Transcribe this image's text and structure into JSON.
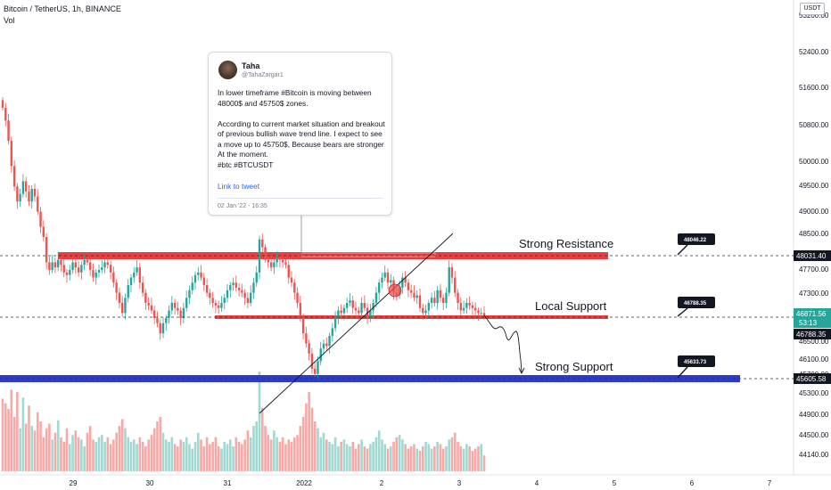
{
  "header": {
    "title": "Bitcoin / TetherUS, 1h, BINANCE",
    "vol_label": "Vol",
    "currency": "USDT"
  },
  "tweet": {
    "name": "Taha",
    "handle": "@TahaZargar1",
    "body": "In lower timeframe #Bitcoin is moving between 48000$ and 45750$ zones.\n\nAccording to current market situation and breakout of previous bullish wave trend line. I expect to see a move up to 45750$, Because bears are stronger At the moment.\n#btc #BTCUSDT",
    "link": "Link to tweet",
    "date": "02 Jan '22 - 16:35"
  },
  "annotations": {
    "strong_resistance": "Strong Resistance",
    "local_support": "Local Support",
    "strong_support": "Strong Support",
    "badge_resistance": "48046.22",
    "badge_local": "46788.35",
    "badge_support": "45633.73"
  },
  "price_tags": {
    "resistance": "48031.40",
    "current": "46871.56",
    "countdown": "53:13",
    "local": "46788.35",
    "support": "45605.58"
  },
  "colors": {
    "up": "#26a69a",
    "down": "#ef5350",
    "vol_up": "#9fd9d1",
    "vol_down": "#f7a9a7",
    "resistance_zone": "#ef3b3b",
    "support_zone": "#2b3bd1",
    "accent": "#2962ff"
  },
  "chart_data": {
    "type": "candlestick",
    "title": "Bitcoin / TetherUS, 1h, BINANCE",
    "y_ticks": [
      "53200.00",
      "52400.00",
      "51600.00",
      "50800.00",
      "50000.00",
      "49500.00",
      "49000.00",
      "48500.00",
      "47700.00",
      "47300.00",
      "46500.00",
      "46100.00",
      "45700.00",
      "45300.00",
      "44900.00",
      "44500.00",
      "44140.00"
    ],
    "x_ticks": [
      "29",
      "30",
      "31",
      "2022",
      "2",
      "3",
      "4",
      "5",
      "6",
      "7"
    ],
    "levels": {
      "strong_resistance": 48031.4,
      "local_support": 46788.35,
      "strong_support": 45605.58
    },
    "last_price": 46871.56,
    "closes": [
      50950,
      50700,
      50300,
      49800,
      49400,
      49100,
      49250,
      49500,
      49300,
      49100,
      49350,
      49200,
      48900,
      48600,
      48400,
      47900,
      47750,
      47900,
      47800,
      47950,
      47850,
      47700,
      47650,
      47750,
      47900,
      47800,
      47700,
      47850,
      47950,
      47900,
      47750,
      47600,
      47700,
      47750,
      47800,
      47900,
      47850,
      47700,
      47500,
      47300,
      47100,
      46900,
      47200,
      47450,
      47600,
      47700,
      47800,
      47500,
      47300,
      47100,
      47050,
      46950,
      46800,
      46700,
      46500,
      46700,
      46800,
      46950,
      47100,
      47000,
      46950,
      46800,
      47000,
      47200,
      47350,
      47500,
      47650,
      47700,
      47600,
      47450,
      47300,
      47200,
      47100,
      47050,
      47000,
      47100,
      47200,
      47350,
      47450,
      47500,
      47400,
      47350,
      47300,
      47200,
      47100,
      47300,
      47500,
      47700,
      48350,
      48200,
      47950,
      47900,
      47800,
      47900,
      48000,
      47950,
      47900,
      47850,
      47600,
      47500,
      47300,
      47100,
      46800,
      46500,
      46300,
      46100,
      45800,
      45700,
      45950,
      46200,
      46300,
      46250,
      46450,
      46600,
      46800,
      46950,
      46900,
      47000,
      47100,
      47150,
      47000,
      46950,
      46900,
      47100,
      47000,
      46800,
      46950,
      47100,
      47300,
      47500,
      47600,
      47700,
      47500,
      47550,
      47300,
      47250,
      47400,
      47600,
      47500,
      47350,
      47300,
      47200,
      47250,
      47000,
      46900,
      46950,
      47100,
      47200,
      47100,
      47350,
      47200,
      47100,
      47300,
      47800,
      47600,
      47300,
      47100,
      46950,
      47000,
      47100,
      47050,
      47000,
      46950,
      46900,
      46900,
      46850
    ],
    "volumes": [
      64,
      60,
      55,
      72,
      48,
      70,
      38,
      65,
      42,
      58,
      40,
      36,
      52,
      44,
      30,
      38,
      42,
      28,
      34,
      45,
      30,
      26,
      38,
      24,
      32,
      36,
      30,
      28,
      22,
      34,
      40,
      28,
      26,
      30,
      32,
      26,
      30,
      24,
      28,
      34,
      40,
      46,
      38,
      30,
      26,
      28,
      24,
      30,
      26,
      22,
      28,
      32,
      38,
      44,
      48,
      34,
      28,
      26,
      30,
      24,
      22,
      28,
      26,
      30,
      24,
      20,
      26,
      34,
      28,
      22,
      30,
      24,
      26,
      30,
      22,
      20,
      26,
      24,
      28,
      22,
      30,
      26,
      24,
      28,
      36,
      30,
      40,
      44,
      88,
      56,
      40,
      32,
      28,
      36,
      30,
      26,
      30,
      24,
      28,
      26,
      30,
      32,
      40,
      48,
      60,
      70,
      56,
      44,
      38,
      30,
      34,
      28,
      26,
      24,
      30,
      22,
      26,
      28,
      24,
      22,
      26,
      20,
      24,
      28,
      22,
      20,
      24,
      26,
      30,
      36,
      28,
      24,
      20,
      22,
      26,
      30,
      32,
      28,
      24,
      20,
      22,
      24,
      20,
      18,
      22,
      26,
      24,
      20,
      22,
      26,
      24,
      20,
      22,
      28,
      30,
      34,
      26,
      22,
      20,
      24,
      22,
      18,
      20,
      22,
      24,
      14
    ]
  }
}
